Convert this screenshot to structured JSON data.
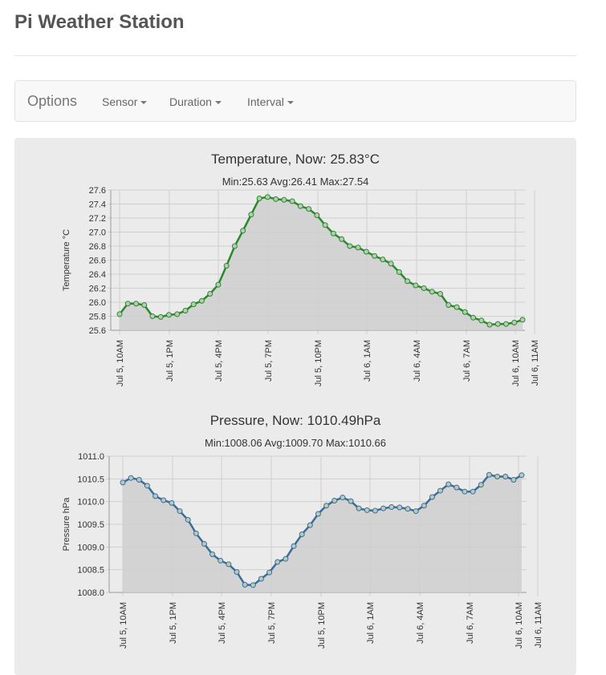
{
  "app": {
    "title": "Pi Weather Station"
  },
  "navbar": {
    "brand": "Options",
    "menus": [
      {
        "label": "Sensor"
      },
      {
        "label": "Duration"
      },
      {
        "label": "Interval"
      }
    ]
  },
  "colors": {
    "temperature": "#2a8a2a",
    "pressure": "#3a6c9c",
    "fill": "#cfcfcf"
  },
  "chart_data": [
    {
      "type": "area",
      "title": "Temperature, Now: 25.83°C",
      "subtitle": "Min:25.63 Avg:26.41 Max:27.54",
      "ylabel": "Temperature °C",
      "xlabel": "",
      "ylim": [
        25.6,
        27.6
      ],
      "yticks": [
        "25.6",
        "25.8",
        "26.0",
        "26.2",
        "26.4",
        "26.6",
        "26.8",
        "27.0",
        "27.2",
        "27.4",
        "27.6"
      ],
      "xticks": [
        "Jul 5, 10AM",
        "Jul 5, 1PM",
        "Jul 5, 4PM",
        "Jul 5, 7PM",
        "Jul 5, 10PM",
        "Jul 6, 1AM",
        "Jul 6, 4AM",
        "Jul 6, 7AM",
        "Jul 6, 10AM",
        "Jul 6, 11AM"
      ],
      "grid": true,
      "values": [
        25.83,
        25.98,
        25.98,
        25.96,
        25.8,
        25.79,
        25.82,
        25.83,
        25.88,
        25.97,
        26.02,
        26.12,
        26.25,
        26.52,
        26.8,
        27.02,
        27.25,
        27.48,
        27.5,
        27.47,
        27.46,
        27.44,
        27.37,
        27.33,
        27.24,
        27.1,
        26.98,
        26.9,
        26.8,
        26.78,
        26.72,
        26.66,
        26.61,
        26.55,
        26.43,
        26.3,
        26.24,
        26.2,
        26.15,
        26.12,
        25.96,
        25.93,
        25.86,
        25.78,
        25.74,
        25.68,
        25.69,
        25.69,
        25.71,
        25.75
      ]
    },
    {
      "type": "area",
      "title": "Pressure, Now: 1010.49hPa",
      "subtitle": "Min:1008.06 Avg:1009.70 Max:1010.66",
      "ylabel": "Pressure hPa",
      "xlabel": "",
      "ylim": [
        1008.0,
        1011.0
      ],
      "yticks": [
        "1008.0",
        "1008.5",
        "1009.0",
        "1009.5",
        "1010.0",
        "1010.5",
        "1011.0"
      ],
      "xticks": [
        "Jul 5, 10AM",
        "Jul 5, 1PM",
        "Jul 5, 4PM",
        "Jul 5, 7PM",
        "Jul 5, 10PM",
        "Jul 6, 1AM",
        "Jul 6, 4AM",
        "Jul 6, 7AM",
        "Jul 6, 10AM",
        "Jul 6, 11AM"
      ],
      "grid": true,
      "values": [
        1010.42,
        1010.52,
        1010.48,
        1010.35,
        1010.12,
        1010.03,
        1009.97,
        1009.79,
        1009.6,
        1009.3,
        1009.07,
        1008.84,
        1008.7,
        1008.62,
        1008.45,
        1008.17,
        1008.16,
        1008.3,
        1008.44,
        1008.67,
        1008.74,
        1009.02,
        1009.28,
        1009.48,
        1009.73,
        1009.91,
        1010.02,
        1010.09,
        1010.01,
        1009.85,
        1009.81,
        1009.8,
        1009.85,
        1009.88,
        1009.87,
        1009.84,
        1009.79,
        1009.91,
        1010.1,
        1010.24,
        1010.38,
        1010.31,
        1010.22,
        1010.22,
        1010.37,
        1010.59,
        1010.55,
        1010.55,
        1010.48,
        1010.58
      ]
    }
  ]
}
